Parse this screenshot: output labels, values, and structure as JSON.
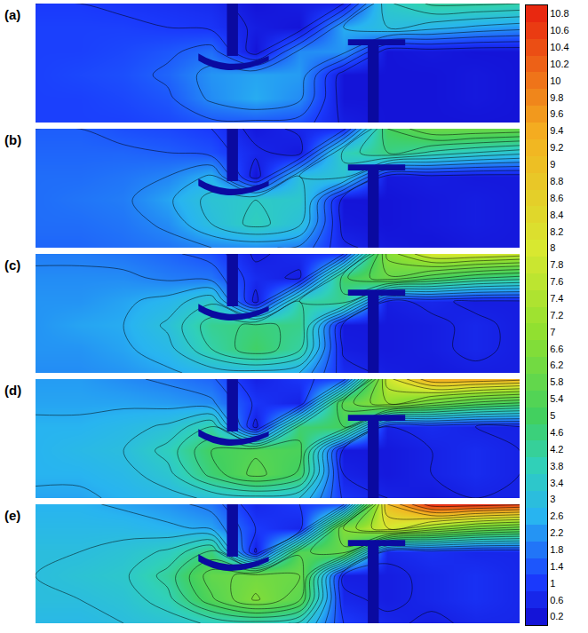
{
  "chart_data": {
    "type": "contour",
    "tick_labels": false,
    "zlim": [
      0.2,
      10.8
    ],
    "colorbar_ticks": [
      0.2,
      0.6,
      1,
      1.4,
      1.8,
      2.2,
      2.6,
      3,
      3.4,
      3.8,
      4.2,
      4.6,
      5,
      5.4,
      5.8,
      6.2,
      6.6,
      7,
      7.2,
      7.4,
      7.6,
      7.8,
      8,
      8.2,
      8.4,
      8.6,
      8.8,
      9,
      9.2,
      9.4,
      9.6,
      9.8,
      10,
      10.2,
      10.4,
      10.6,
      10.8
    ],
    "panels": [
      {
        "label": "(a)",
        "z": [
          [
            1.0,
            1.0,
            0.9,
            0.8,
            0.7,
            0.2,
            0.4,
            0.5,
            3.4,
            4.1,
            4.1,
            4.0
          ],
          [
            1.1,
            1.1,
            1.1,
            1.0,
            0.9,
            0.4,
            0.2,
            2.5,
            3.0,
            2.7,
            2.4,
            2.2
          ],
          [
            1.1,
            1.1,
            1.2,
            1.4,
            1.7,
            0.2,
            2.1,
            2.2,
            0.2,
            0.3,
            0.2,
            0.2
          ],
          [
            1.1,
            1.2,
            1.3,
            1.6,
            2.2,
            2.4,
            2.3,
            0.2,
            0.2,
            0.2,
            0.3,
            0.2
          ],
          [
            1.1,
            1.1,
            1.2,
            1.4,
            2.1,
            2.5,
            2.1,
            0.2,
            0.2,
            0.2,
            0.3,
            0.2
          ],
          [
            1.1,
            1.1,
            1.1,
            1.2,
            1.4,
            1.4,
            1.3,
            0.4,
            0.2,
            0.2,
            0.2,
            0.2
          ]
        ]
      },
      {
        "label": "(b)",
        "z": [
          [
            1.5,
            1.5,
            1.3,
            1.2,
            1.0,
            0.3,
            0.6,
            0.8,
            5.0,
            6.0,
            6.0,
            5.9
          ],
          [
            1.6,
            1.6,
            1.6,
            1.5,
            1.3,
            0.6,
            0.3,
            3.7,
            4.5,
            3.9,
            3.5,
            3.2
          ],
          [
            1.7,
            1.7,
            1.8,
            2.0,
            2.6,
            0.2,
            3.0,
            3.2,
            0.3,
            0.4,
            0.3,
            0.3
          ],
          [
            1.7,
            1.8,
            1.9,
            2.4,
            3.2,
            3.5,
            3.4,
            0.2,
            0.2,
            0.3,
            0.4,
            0.3
          ],
          [
            1.7,
            1.7,
            1.8,
            2.1,
            3.0,
            3.7,
            3.1,
            0.3,
            0.2,
            0.3,
            0.4,
            0.3
          ],
          [
            1.6,
            1.6,
            1.7,
            1.8,
            2.0,
            2.1,
            1.9,
            0.6,
            0.3,
            0.2,
            0.3,
            0.3
          ]
        ]
      },
      {
        "label": "(c)",
        "z": [
          [
            1.9,
            1.9,
            1.8,
            1.6,
            1.3,
            0.4,
            0.7,
            1.0,
            6.7,
            8.0,
            8.0,
            7.8
          ],
          [
            2.1,
            2.1,
            2.1,
            1.9,
            1.8,
            0.7,
            0.4,
            4.9,
            5.9,
            5.2,
            4.6,
            4.3
          ],
          [
            2.2,
            2.2,
            2.4,
            2.7,
            3.4,
            0.3,
            4.0,
            4.3,
            0.4,
            0.6,
            0.4,
            0.4
          ],
          [
            2.2,
            2.4,
            2.5,
            3.1,
            4.3,
            4.6,
            4.4,
            0.3,
            0.3,
            0.4,
            0.6,
            0.4
          ],
          [
            2.2,
            2.2,
            2.4,
            2.8,
            4.0,
            4.9,
            4.1,
            0.4,
            0.3,
            0.4,
            0.6,
            0.4
          ],
          [
            2.1,
            2.1,
            2.2,
            2.4,
            2.7,
            2.8,
            2.5,
            0.7,
            0.4,
            0.3,
            0.4,
            0.4
          ]
        ]
      },
      {
        "label": "(d)",
        "z": [
          [
            2.3,
            2.3,
            2.1,
            1.9,
            1.6,
            0.5,
            0.9,
            1.2,
            7.8,
            9.4,
            9.4,
            9.2
          ],
          [
            2.4,
            2.4,
            2.4,
            2.3,
            2.1,
            0.9,
            0.5,
            5.7,
            7.0,
            6.1,
            5.4,
            5.0
          ],
          [
            2.6,
            2.6,
            2.8,
            3.1,
            4.0,
            0.3,
            4.7,
            5.0,
            0.5,
            0.7,
            0.5,
            0.5
          ],
          [
            2.6,
            2.8,
            3.0,
            3.7,
            5.0,
            5.4,
            5.2,
            0.3,
            0.3,
            0.5,
            0.7,
            0.5
          ],
          [
            2.6,
            2.6,
            2.8,
            3.3,
            4.7,
            5.7,
            4.9,
            0.5,
            0.3,
            0.5,
            0.7,
            0.5
          ],
          [
            2.4,
            2.4,
            2.6,
            2.8,
            3.1,
            3.3,
            3.0,
            0.9,
            0.5,
            0.3,
            0.5,
            0.5
          ]
        ]
      },
      {
        "label": "(e)",
        "z": [
          [
            2.6,
            2.6,
            2.4,
            2.2,
            1.8,
            0.6,
            1.0,
            1.4,
            9.0,
            10.8,
            10.8,
            10.6
          ],
          [
            2.8,
            2.8,
            2.8,
            2.6,
            2.4,
            1.0,
            0.6,
            6.6,
            8.0,
            7.0,
            6.2,
            5.8
          ],
          [
            3.0,
            3.0,
            3.2,
            3.6,
            4.6,
            0.4,
            5.4,
            5.8,
            0.6,
            0.8,
            0.6,
            0.6
          ],
          [
            3.0,
            3.2,
            3.4,
            4.2,
            5.8,
            6.2,
            6.0,
            0.4,
            0.4,
            0.6,
            0.8,
            0.6
          ],
          [
            3.0,
            3.0,
            3.2,
            3.8,
            5.4,
            6.6,
            5.6,
            0.6,
            0.4,
            0.6,
            0.8,
            0.6
          ],
          [
            2.8,
            2.8,
            3.0,
            3.2,
            3.6,
            3.8,
            3.4,
            1.0,
            0.6,
            0.4,
            0.6,
            0.6
          ]
        ]
      }
    ]
  }
}
